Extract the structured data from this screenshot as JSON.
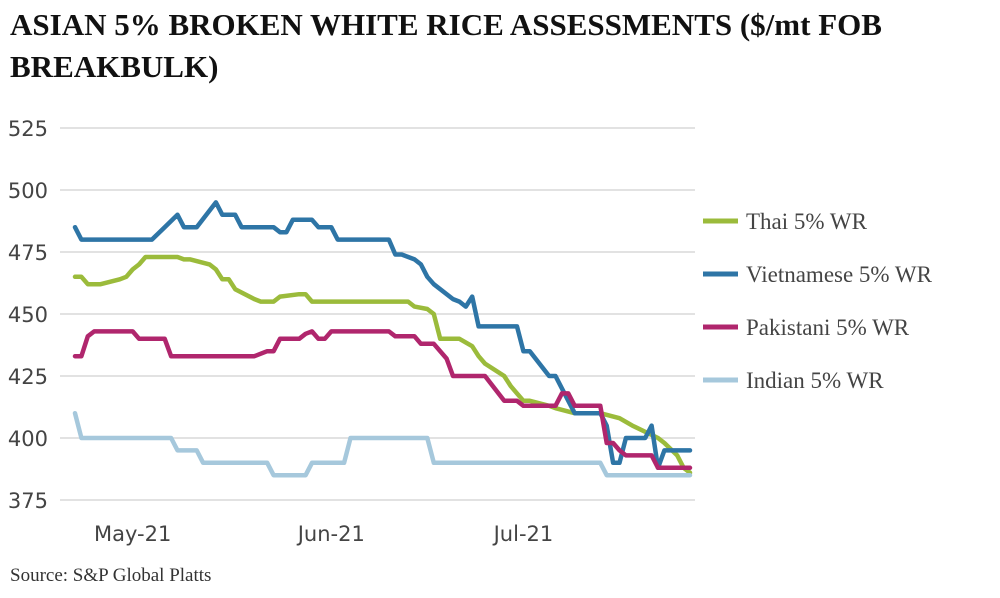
{
  "chart_data": {
    "type": "line",
    "title": "ASIAN 5% BROKEN WHITE RICE ASSESSMENTS ($/mt FOB BREAKBULK)",
    "source": "Source: S&P Global Platts",
    "xlabel": "",
    "ylabel": "",
    "ylim": [
      375,
      525
    ],
    "yticks": [
      375,
      400,
      425,
      450,
      475,
      500,
      525
    ],
    "ytick_labels": [
      "375",
      "400",
      "425",
      "450",
      "475",
      "500",
      "525"
    ],
    "xlim": [
      "2021-04-22",
      "2021-07-27"
    ],
    "xticks": [
      {
        "label": "May-21",
        "date": "2021-05-01"
      },
      {
        "label": "Jun-21",
        "date": "2021-06-01"
      },
      {
        "label": "Jul-21",
        "date": "2021-07-01"
      }
    ],
    "grid": true,
    "legend_position": "right",
    "series": [
      {
        "name": "Thai 5% WR",
        "color": "#9bbb3b",
        "points": [
          [
            "2021-04-22",
            465
          ],
          [
            "2021-04-23",
            465
          ],
          [
            "2021-04-24",
            462
          ],
          [
            "2021-04-25",
            462
          ],
          [
            "2021-04-26",
            462
          ],
          [
            "2021-04-29",
            464
          ],
          [
            "2021-04-30",
            465
          ],
          [
            "2021-05-01",
            468
          ],
          [
            "2021-05-02",
            470
          ],
          [
            "2021-05-03",
            473
          ],
          [
            "2021-05-04",
            473
          ],
          [
            "2021-05-05",
            473
          ],
          [
            "2021-05-06",
            473
          ],
          [
            "2021-05-07",
            473
          ],
          [
            "2021-05-08",
            473
          ],
          [
            "2021-05-09",
            472
          ],
          [
            "2021-05-10",
            472
          ],
          [
            "2021-05-13",
            470
          ],
          [
            "2021-05-14",
            468
          ],
          [
            "2021-05-15",
            464
          ],
          [
            "2021-05-16",
            464
          ],
          [
            "2021-05-17",
            460
          ],
          [
            "2021-05-20",
            456
          ],
          [
            "2021-05-21",
            455
          ],
          [
            "2021-05-22",
            455
          ],
          [
            "2021-05-23",
            455
          ],
          [
            "2021-05-24",
            457
          ],
          [
            "2021-05-27",
            458
          ],
          [
            "2021-05-28",
            458
          ],
          [
            "2021-05-29",
            455
          ],
          [
            "2021-05-30",
            455
          ],
          [
            "2021-06-13",
            455
          ],
          [
            "2021-06-14",
            453
          ],
          [
            "2021-06-16",
            452
          ],
          [
            "2021-06-17",
            450
          ],
          [
            "2021-06-18",
            440
          ],
          [
            "2021-06-19",
            440
          ],
          [
            "2021-06-20",
            440
          ],
          [
            "2021-06-21",
            440
          ],
          [
            "2021-06-23",
            437
          ],
          [
            "2021-06-24",
            433
          ],
          [
            "2021-06-25",
            430
          ],
          [
            "2021-06-28",
            425
          ],
          [
            "2021-06-29",
            421
          ],
          [
            "2021-06-30",
            418
          ],
          [
            "2021-07-01",
            415
          ],
          [
            "2021-07-02",
            415
          ],
          [
            "2021-07-05",
            413
          ],
          [
            "2021-07-06",
            412
          ],
          [
            "2021-07-09",
            410
          ],
          [
            "2021-07-13",
            410
          ],
          [
            "2021-07-16",
            408
          ],
          [
            "2021-07-18",
            405
          ],
          [
            "2021-07-22",
            400
          ],
          [
            "2021-07-23",
            398
          ],
          [
            "2021-07-25",
            393
          ],
          [
            "2021-07-26",
            388
          ],
          [
            "2021-07-27",
            386
          ]
        ]
      },
      {
        "name": "Vietnamese 5% WR",
        "color": "#2e75a6",
        "points": [
          [
            "2021-04-22",
            485
          ],
          [
            "2021-04-23",
            480
          ],
          [
            "2021-04-24",
            480
          ],
          [
            "2021-04-25",
            480
          ],
          [
            "2021-05-03",
            480
          ],
          [
            "2021-05-04",
            480
          ],
          [
            "2021-05-06",
            485
          ],
          [
            "2021-05-08",
            490
          ],
          [
            "2021-05-09",
            485
          ],
          [
            "2021-05-10",
            485
          ],
          [
            "2021-05-11",
            485
          ],
          [
            "2021-05-14",
            495
          ],
          [
            "2021-05-15",
            490
          ],
          [
            "2021-05-16",
            490
          ],
          [
            "2021-05-17",
            490
          ],
          [
            "2021-05-18",
            485
          ],
          [
            "2021-05-19",
            485
          ],
          [
            "2021-05-20",
            485
          ],
          [
            "2021-05-23",
            485
          ],
          [
            "2021-05-24",
            483
          ],
          [
            "2021-05-25",
            483
          ],
          [
            "2021-05-26",
            488
          ],
          [
            "2021-05-27",
            488
          ],
          [
            "2021-05-28",
            488
          ],
          [
            "2021-05-29",
            488
          ],
          [
            "2021-05-30",
            485
          ],
          [
            "2021-05-31",
            485
          ],
          [
            "2021-06-01",
            485
          ],
          [
            "2021-06-02",
            480
          ],
          [
            "2021-06-03",
            480
          ],
          [
            "2021-06-04",
            480
          ],
          [
            "2021-06-10",
            480
          ],
          [
            "2021-06-11",
            474
          ],
          [
            "2021-06-12",
            474
          ],
          [
            "2021-06-14",
            472
          ],
          [
            "2021-06-15",
            470
          ],
          [
            "2021-06-16",
            465
          ],
          [
            "2021-06-17",
            462
          ],
          [
            "2021-06-20",
            456
          ],
          [
            "2021-06-21",
            455
          ],
          [
            "2021-06-22",
            453
          ],
          [
            "2021-06-23",
            457
          ],
          [
            "2021-06-24",
            445
          ],
          [
            "2021-06-25",
            445
          ],
          [
            "2021-06-30",
            445
          ],
          [
            "2021-07-01",
            435
          ],
          [
            "2021-07-02",
            435
          ],
          [
            "2021-07-05",
            425
          ],
          [
            "2021-07-06",
            425
          ],
          [
            "2021-07-08",
            415
          ],
          [
            "2021-07-09",
            410
          ],
          [
            "2021-07-10",
            410
          ],
          [
            "2021-07-13",
            410
          ],
          [
            "2021-07-14",
            405
          ],
          [
            "2021-07-15",
            390
          ],
          [
            "2021-07-16",
            390
          ],
          [
            "2021-07-17",
            400
          ],
          [
            "2021-07-18",
            400
          ],
          [
            "2021-07-20",
            400
          ],
          [
            "2021-07-21",
            405
          ],
          [
            "2021-07-22",
            388
          ],
          [
            "2021-07-23",
            395
          ],
          [
            "2021-07-24",
            395
          ],
          [
            "2021-07-27",
            395
          ]
        ]
      },
      {
        "name": "Pakistani 5% WR",
        "color": "#b0266d",
        "points": [
          [
            "2021-04-22",
            433
          ],
          [
            "2021-04-23",
            433
          ],
          [
            "2021-04-24",
            441
          ],
          [
            "2021-04-25",
            443
          ],
          [
            "2021-04-26",
            443
          ],
          [
            "2021-05-01",
            443
          ],
          [
            "2021-05-02",
            440
          ],
          [
            "2021-05-03",
            440
          ],
          [
            "2021-05-06",
            440
          ],
          [
            "2021-05-07",
            433
          ],
          [
            "2021-05-08",
            433
          ],
          [
            "2021-05-09",
            433
          ],
          [
            "2021-05-20",
            433
          ],
          [
            "2021-05-21",
            434
          ],
          [
            "2021-05-22",
            435
          ],
          [
            "2021-05-23",
            435
          ],
          [
            "2021-05-24",
            440
          ],
          [
            "2021-05-25",
            440
          ],
          [
            "2021-05-26",
            440
          ],
          [
            "2021-05-27",
            440
          ],
          [
            "2021-05-28",
            442
          ],
          [
            "2021-05-29",
            443
          ],
          [
            "2021-05-30",
            440
          ],
          [
            "2021-05-31",
            440
          ],
          [
            "2021-06-01",
            443
          ],
          [
            "2021-06-02",
            443
          ],
          [
            "2021-06-10",
            443
          ],
          [
            "2021-06-11",
            441
          ],
          [
            "2021-06-12",
            441
          ],
          [
            "2021-06-14",
            441
          ],
          [
            "2021-06-15",
            438
          ],
          [
            "2021-06-16",
            438
          ],
          [
            "2021-06-17",
            438
          ],
          [
            "2021-06-19",
            432
          ],
          [
            "2021-06-20",
            425
          ],
          [
            "2021-06-21",
            425
          ],
          [
            "2021-06-25",
            425
          ],
          [
            "2021-06-28",
            415
          ],
          [
            "2021-06-29",
            415
          ],
          [
            "2021-06-30",
            415
          ],
          [
            "2021-07-01",
            413
          ],
          [
            "2021-07-02",
            413
          ],
          [
            "2021-07-06",
            413
          ],
          [
            "2021-07-07",
            418
          ],
          [
            "2021-07-08",
            418
          ],
          [
            "2021-07-09",
            413
          ],
          [
            "2021-07-10",
            413
          ],
          [
            "2021-07-13",
            413
          ],
          [
            "2021-07-14",
            398
          ],
          [
            "2021-07-15",
            398
          ],
          [
            "2021-07-16",
            395
          ],
          [
            "2021-07-17",
            393
          ],
          [
            "2021-07-18",
            393
          ],
          [
            "2021-07-21",
            393
          ],
          [
            "2021-07-22",
            388
          ],
          [
            "2021-07-23",
            388
          ],
          [
            "2021-07-27",
            388
          ]
        ]
      },
      {
        "name": "Indian 5% WR",
        "color": "#a6c8dc",
        "points": [
          [
            "2021-04-22",
            410
          ],
          [
            "2021-04-23",
            400
          ],
          [
            "2021-04-24",
            400
          ],
          [
            "2021-05-07",
            400
          ],
          [
            "2021-05-08",
            395
          ],
          [
            "2021-05-09",
            395
          ],
          [
            "2021-05-11",
            395
          ],
          [
            "2021-05-12",
            390
          ],
          [
            "2021-05-13",
            390
          ],
          [
            "2021-05-22",
            390
          ],
          [
            "2021-05-23",
            385
          ],
          [
            "2021-05-24",
            385
          ],
          [
            "2021-05-28",
            385
          ],
          [
            "2021-05-29",
            390
          ],
          [
            "2021-05-30",
            390
          ],
          [
            "2021-06-03",
            390
          ],
          [
            "2021-06-04",
            400
          ],
          [
            "2021-06-05",
            400
          ],
          [
            "2021-06-16",
            400
          ],
          [
            "2021-06-17",
            390
          ],
          [
            "2021-06-18",
            390
          ],
          [
            "2021-07-13",
            390
          ],
          [
            "2021-07-14",
            385
          ],
          [
            "2021-07-15",
            385
          ],
          [
            "2021-07-27",
            385
          ]
        ]
      }
    ]
  }
}
